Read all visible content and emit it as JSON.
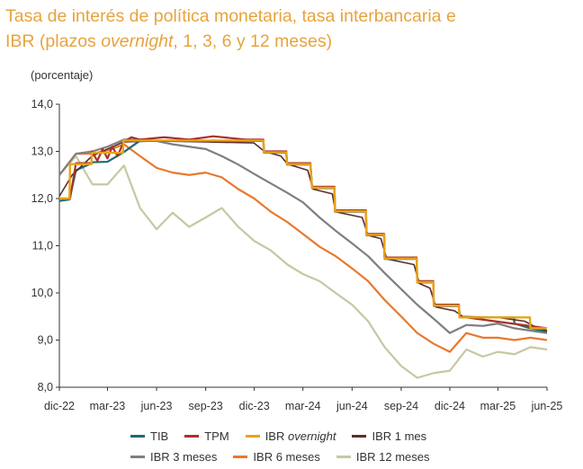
{
  "title": {
    "line1": "Tasa de interés de política monetaria, tasa interbancaria e",
    "line2_pre": "IBR (plazos ",
    "line2_em": "overnight",
    "line2_post": ", 1, 3, 6 y 12 meses)"
  },
  "unit_label": "(porcentaje)",
  "chart_data": {
    "type": "line",
    "ylim": [
      8.0,
      14.0
    ],
    "yticks": [
      "14,0",
      "13,0",
      "12,0",
      "11,0",
      "10,0",
      "9,0",
      "8,0"
    ],
    "ytick_values": [
      14,
      13,
      12,
      11,
      10,
      9,
      8
    ],
    "xlim": [
      "2022-12-01",
      "2025-06-01"
    ],
    "xticks": [
      "dic-22",
      "mar-23",
      "jun-23",
      "sep-23",
      "dic-23",
      "mar-24",
      "jun-24",
      "sep-24",
      "dic-24",
      "mar-25",
      "jun-25"
    ],
    "xtick_values": [
      "2022-12-01",
      "2023-03-01",
      "2023-06-01",
      "2023-09-01",
      "2023-12-01",
      "2024-03-01",
      "2024-06-01",
      "2024-09-01",
      "2024-12-01",
      "2025-03-01",
      "2025-06-01"
    ],
    "series": [
      {
        "name": "TIB",
        "color": "#1B6B74",
        "width": 2.2,
        "points": [
          [
            "2022-12-01",
            11.95
          ],
          [
            "2022-12-20",
            11.98
          ],
          [
            "2023-01-01",
            12.6
          ],
          [
            "2023-01-31",
            12.75
          ],
          [
            "2023-02-01",
            12.77
          ],
          [
            "2023-03-01",
            12.78
          ],
          [
            "2023-03-31",
            12.98
          ],
          [
            "2023-04-30",
            13.22
          ],
          [
            "2023-12-18",
            13.22
          ],
          [
            "2023-12-19",
            12.97
          ],
          [
            "2024-01-30",
            12.97
          ],
          [
            "2024-01-31",
            12.72
          ],
          [
            "2024-03-15",
            12.72
          ],
          [
            "2024-03-18",
            12.22
          ],
          [
            "2024-04-29",
            12.22
          ],
          [
            "2024-04-30",
            11.72
          ],
          [
            "2024-06-27",
            11.72
          ],
          [
            "2024-06-28",
            11.22
          ],
          [
            "2024-07-31",
            11.22
          ],
          [
            "2024-08-01",
            10.72
          ],
          [
            "2024-09-30",
            10.72
          ],
          [
            "2024-10-01",
            10.22
          ],
          [
            "2024-10-31",
            10.22
          ],
          [
            "2024-11-01",
            9.72
          ],
          [
            "2024-12-18",
            9.72
          ],
          [
            "2024-12-20",
            9.48
          ],
          [
            "2025-03-31",
            9.48
          ],
          [
            "2025-04-01",
            9.35
          ],
          [
            "2025-04-30",
            9.25
          ],
          [
            "2025-06-01",
            9.18
          ]
        ]
      },
      {
        "name": "TPM",
        "color": "#A93226",
        "width": 2.2,
        "points": [
          [
            "2022-12-01",
            12.0
          ],
          [
            "2022-12-20",
            12.0
          ],
          [
            "2022-12-21",
            12.0
          ],
          [
            "2023-01-01",
            12.75
          ],
          [
            "2023-01-30",
            12.75
          ],
          [
            "2023-01-31",
            13.0
          ],
          [
            "2023-02-10",
            12.8
          ],
          [
            "2023-02-20",
            13.05
          ],
          [
            "2023-03-01",
            12.85
          ],
          [
            "2023-03-10",
            13.1
          ],
          [
            "2023-03-20",
            12.9
          ],
          [
            "2023-03-31",
            13.2
          ],
          [
            "2023-04-15",
            13.3
          ],
          [
            "2023-05-01",
            13.25
          ],
          [
            "2023-06-15",
            13.3
          ],
          [
            "2023-08-01",
            13.25
          ],
          [
            "2023-09-15",
            13.32
          ],
          [
            "2023-11-15",
            13.25
          ],
          [
            "2023-12-18",
            13.25
          ],
          [
            "2023-12-19",
            13.0
          ],
          [
            "2024-01-30",
            13.0
          ],
          [
            "2024-01-31",
            12.75
          ],
          [
            "2024-03-15",
            12.75
          ],
          [
            "2024-03-18",
            12.25
          ],
          [
            "2024-04-29",
            12.25
          ],
          [
            "2024-04-30",
            11.75
          ],
          [
            "2024-06-27",
            11.75
          ],
          [
            "2024-06-28",
            11.25
          ],
          [
            "2024-07-31",
            11.25
          ],
          [
            "2024-08-01",
            10.75
          ],
          [
            "2024-09-30",
            10.75
          ],
          [
            "2024-10-01",
            10.25
          ],
          [
            "2024-10-31",
            10.25
          ],
          [
            "2024-11-01",
            9.75
          ],
          [
            "2024-12-18",
            9.75
          ],
          [
            "2024-12-19",
            9.5
          ],
          [
            "2025-06-01",
            9.25
          ]
        ]
      },
      {
        "name": "IBR overnight",
        "color": "#E8A317",
        "width": 2.4,
        "points": [
          [
            "2022-12-01",
            12.0
          ],
          [
            "2022-12-20",
            12.0
          ],
          [
            "2022-12-21",
            12.73
          ],
          [
            "2023-01-30",
            12.73
          ],
          [
            "2023-01-31",
            12.97
          ],
          [
            "2023-03-30",
            12.97
          ],
          [
            "2023-03-31",
            13.23
          ],
          [
            "2023-12-18",
            13.23
          ],
          [
            "2023-12-19",
            12.98
          ],
          [
            "2024-01-30",
            12.98
          ],
          [
            "2024-01-31",
            12.73
          ],
          [
            "2024-03-15",
            12.73
          ],
          [
            "2024-03-18",
            12.23
          ],
          [
            "2024-04-29",
            12.23
          ],
          [
            "2024-04-30",
            11.73
          ],
          [
            "2024-06-27",
            11.73
          ],
          [
            "2024-06-28",
            11.23
          ],
          [
            "2024-07-31",
            11.23
          ],
          [
            "2024-08-01",
            10.73
          ],
          [
            "2024-09-30",
            10.73
          ],
          [
            "2024-10-01",
            10.23
          ],
          [
            "2024-10-31",
            10.23
          ],
          [
            "2024-11-01",
            9.73
          ],
          [
            "2024-12-18",
            9.73
          ],
          [
            "2024-12-19",
            9.48
          ],
          [
            "2025-04-30",
            9.48
          ],
          [
            "2025-05-01",
            9.25
          ],
          [
            "2025-06-01",
            9.25
          ]
        ]
      },
      {
        "name": "IBR 1 mes",
        "color": "#5D2E2A",
        "width": 1.6,
        "points": [
          [
            "2022-12-01",
            12.05
          ],
          [
            "2022-12-25",
            12.5
          ],
          [
            "2023-01-31",
            12.9
          ],
          [
            "2023-03-01",
            13.05
          ],
          [
            "2023-03-31",
            13.2
          ],
          [
            "2023-06-01",
            13.22
          ],
          [
            "2023-09-01",
            13.2
          ],
          [
            "2023-11-30",
            13.18
          ],
          [
            "2023-12-20",
            13.0
          ],
          [
            "2024-01-20",
            12.9
          ],
          [
            "2024-02-01",
            12.73
          ],
          [
            "2024-03-10",
            12.6
          ],
          [
            "2024-03-20",
            12.2
          ],
          [
            "2024-04-25",
            12.1
          ],
          [
            "2024-05-01",
            11.72
          ],
          [
            "2024-06-20",
            11.6
          ],
          [
            "2024-07-01",
            11.22
          ],
          [
            "2024-07-25",
            11.15
          ],
          [
            "2024-08-05",
            10.72
          ],
          [
            "2024-09-25",
            10.6
          ],
          [
            "2024-10-05",
            10.2
          ],
          [
            "2024-10-25",
            10.1
          ],
          [
            "2024-11-05",
            9.7
          ],
          [
            "2024-12-10",
            9.62
          ],
          [
            "2024-12-25",
            9.5
          ],
          [
            "2025-03-01",
            9.48
          ],
          [
            "2025-04-20",
            9.4
          ],
          [
            "2025-05-10",
            9.28
          ],
          [
            "2025-06-01",
            9.2
          ]
        ]
      },
      {
        "name": "IBR 3 meses",
        "color": "#7F7F7F",
        "width": 2.2,
        "points": [
          [
            "2022-12-01",
            12.5
          ],
          [
            "2023-01-01",
            12.95
          ],
          [
            "2023-02-01",
            13.0
          ],
          [
            "2023-03-01",
            13.1
          ],
          [
            "2023-04-01",
            13.25
          ],
          [
            "2023-05-01",
            13.25
          ],
          [
            "2023-06-01",
            13.22
          ],
          [
            "2023-07-01",
            13.15
          ],
          [
            "2023-08-01",
            13.1
          ],
          [
            "2023-09-01",
            13.05
          ],
          [
            "2023-10-01",
            12.9
          ],
          [
            "2023-11-01",
            12.72
          ],
          [
            "2023-12-01",
            12.52
          ],
          [
            "2024-01-01",
            12.32
          ],
          [
            "2024-02-01",
            12.12
          ],
          [
            "2024-03-01",
            11.92
          ],
          [
            "2024-04-01",
            11.6
          ],
          [
            "2024-05-01",
            11.32
          ],
          [
            "2024-06-01",
            11.05
          ],
          [
            "2024-07-01",
            10.78
          ],
          [
            "2024-08-01",
            10.42
          ],
          [
            "2024-09-01",
            10.08
          ],
          [
            "2024-10-01",
            9.75
          ],
          [
            "2024-11-01",
            9.45
          ],
          [
            "2024-12-01",
            9.15
          ],
          [
            "2025-01-01",
            9.32
          ],
          [
            "2025-02-01",
            9.3
          ],
          [
            "2025-03-01",
            9.35
          ],
          [
            "2025-04-01",
            9.25
          ],
          [
            "2025-05-01",
            9.2
          ],
          [
            "2025-06-01",
            9.15
          ]
        ]
      },
      {
        "name": "IBR 6 meses",
        "color": "#E8782F",
        "width": 2.2,
        "points": [
          [
            "2022-12-01",
            12.5
          ],
          [
            "2023-01-01",
            12.95
          ],
          [
            "2023-02-01",
            12.95
          ],
          [
            "2023-03-01",
            13.02
          ],
          [
            "2023-04-01",
            13.15
          ],
          [
            "2023-05-01",
            12.9
          ],
          [
            "2023-06-01",
            12.65
          ],
          [
            "2023-07-01",
            12.55
          ],
          [
            "2023-08-01",
            12.5
          ],
          [
            "2023-09-01",
            12.55
          ],
          [
            "2023-10-01",
            12.45
          ],
          [
            "2023-11-01",
            12.2
          ],
          [
            "2023-12-01",
            12.0
          ],
          [
            "2024-01-01",
            11.72
          ],
          [
            "2024-02-01",
            11.5
          ],
          [
            "2024-03-01",
            11.25
          ],
          [
            "2024-04-01",
            10.98
          ],
          [
            "2024-05-01",
            10.78
          ],
          [
            "2024-06-01",
            10.52
          ],
          [
            "2024-07-01",
            10.25
          ],
          [
            "2024-08-01",
            9.85
          ],
          [
            "2024-09-01",
            9.5
          ],
          [
            "2024-10-01",
            9.15
          ],
          [
            "2024-11-01",
            8.92
          ],
          [
            "2024-12-01",
            8.75
          ],
          [
            "2025-01-01",
            9.15
          ],
          [
            "2025-02-01",
            9.05
          ],
          [
            "2025-03-01",
            9.05
          ],
          [
            "2025-04-01",
            9.0
          ],
          [
            "2025-05-01",
            9.05
          ],
          [
            "2025-06-01",
            9.0
          ]
        ]
      },
      {
        "name": "IBR 12 meses",
        "color": "#C7C7A3",
        "width": 2.2,
        "points": [
          [
            "2022-12-01",
            12.5
          ],
          [
            "2023-01-01",
            12.9
          ],
          [
            "2023-02-01",
            12.3
          ],
          [
            "2023-03-01",
            12.3
          ],
          [
            "2023-04-01",
            12.7
          ],
          [
            "2023-05-01",
            11.8
          ],
          [
            "2023-06-01",
            11.35
          ],
          [
            "2023-07-01",
            11.7
          ],
          [
            "2023-08-01",
            11.4
          ],
          [
            "2023-09-01",
            11.6
          ],
          [
            "2023-10-01",
            11.8
          ],
          [
            "2023-11-01",
            11.4
          ],
          [
            "2023-12-01",
            11.1
          ],
          [
            "2024-01-01",
            10.9
          ],
          [
            "2024-02-01",
            10.6
          ],
          [
            "2024-03-01",
            10.4
          ],
          [
            "2024-04-01",
            10.25
          ],
          [
            "2024-05-01",
            10.0
          ],
          [
            "2024-06-01",
            9.75
          ],
          [
            "2024-07-01",
            9.4
          ],
          [
            "2024-08-01",
            8.85
          ],
          [
            "2024-09-01",
            8.45
          ],
          [
            "2024-10-01",
            8.2
          ],
          [
            "2024-11-01",
            8.3
          ],
          [
            "2024-12-01",
            8.35
          ],
          [
            "2025-01-01",
            8.8
          ],
          [
            "2025-02-01",
            8.65
          ],
          [
            "2025-03-01",
            8.75
          ],
          [
            "2025-04-01",
            8.7
          ],
          [
            "2025-05-01",
            8.85
          ],
          [
            "2025-06-01",
            8.8
          ]
        ]
      }
    ]
  },
  "legend": {
    "row1": [
      {
        "label": "TIB",
        "color": "#1B6B74"
      },
      {
        "label": "TPM",
        "color": "#A93226"
      },
      {
        "label_pre": "IBR ",
        "label_em": "overnight",
        "color": "#E8A317"
      },
      {
        "label": "IBR 1 mes",
        "color": "#5D2E2A"
      }
    ],
    "row2": [
      {
        "label": "IBR 3 meses",
        "color": "#7F7F7F"
      },
      {
        "label": "IBR 6 meses",
        "color": "#E8782F"
      },
      {
        "label": "IBR 12 meses",
        "color": "#C7C7A3"
      }
    ]
  }
}
